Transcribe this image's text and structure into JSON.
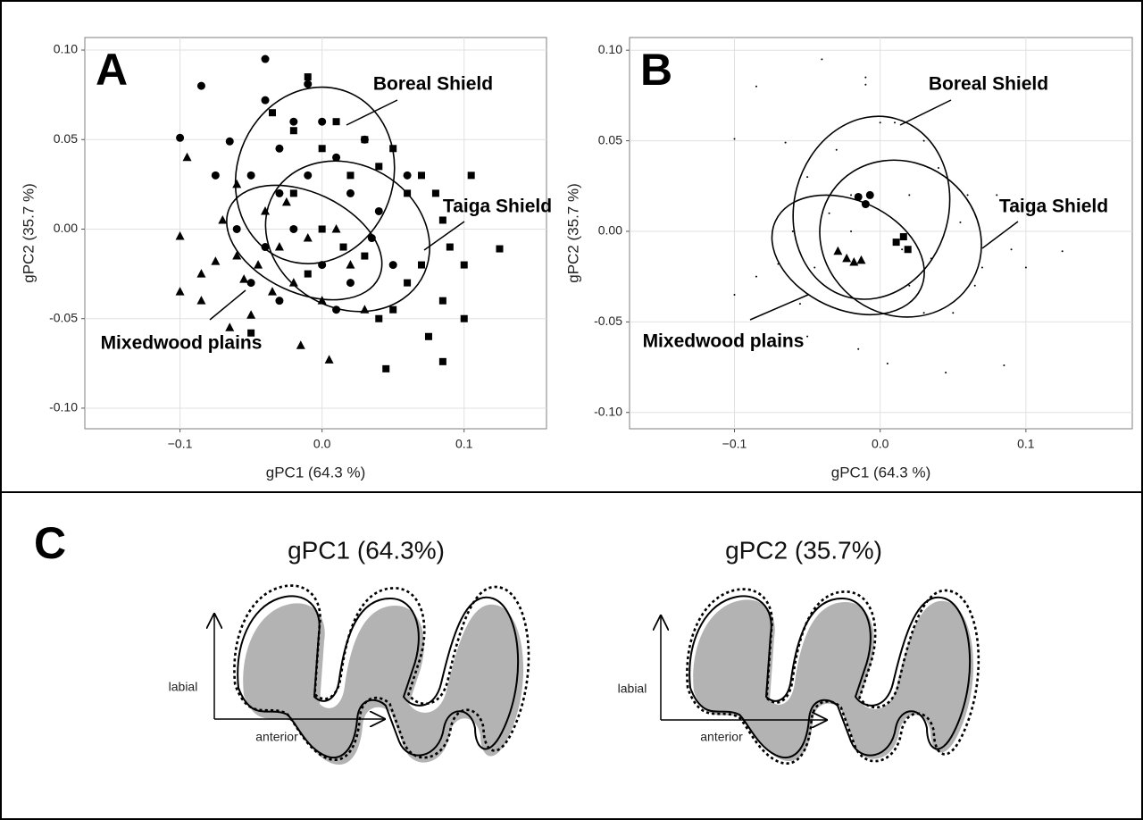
{
  "chart_data": [
    {
      "type": "scatter",
      "panel_label": "A",
      "xlabel": "gPC1 (64.3 %)",
      "ylabel": "gPC2 (35.7 %)",
      "xlim": [
        -0.167,
        0.158
      ],
      "ylim": [
        -0.1115,
        0.107
      ],
      "grid": true,
      "xticks": [
        {
          "value": -0.1,
          "label": "−0.1"
        },
        {
          "value": 0,
          "label": "0.0"
        },
        {
          "value": 0.1,
          "label": "0.1"
        }
      ],
      "yticks": [
        {
          "value": -0.1,
          "label": "-0.10"
        },
        {
          "value": -0.05,
          "label": "-0.05"
        },
        {
          "value": 0,
          "label": "0.00"
        },
        {
          "value": 0.05,
          "label": "0.05"
        },
        {
          "value": 0.1,
          "label": "0.10"
        }
      ],
      "series": [
        {
          "marker": "circle",
          "color": "#000000",
          "x": [
            -0.085,
            -0.04,
            -0.01,
            -0.1,
            -0.065,
            -0.04,
            -0.03,
            -0.02,
            0.0,
            0.01,
            0.03,
            -0.05,
            -0.03,
            -0.01,
            0.02,
            0.04,
            -0.06,
            -0.04,
            -0.02,
            0.0,
            0.02,
            -0.05,
            -0.03,
            0.01,
            0.06,
            0.05,
            -0.075,
            0.035
          ],
          "values": [
            0.08,
            0.095,
            0.081,
            0.051,
            0.049,
            0.072,
            0.045,
            0.06,
            0.06,
            0.04,
            0.05,
            0.03,
            0.02,
            0.03,
            0.02,
            0.01,
            0.0,
            -0.01,
            0.0,
            -0.02,
            -0.03,
            -0.03,
            -0.04,
            -0.045,
            0.03,
            -0.02,
            0.03,
            -0.005
          ]
        },
        {
          "marker": "triangle",
          "color": "#000000",
          "x": [
            -0.1,
            -0.1,
            -0.085,
            -0.085,
            -0.075,
            -0.07,
            -0.06,
            -0.06,
            -0.055,
            -0.05,
            -0.045,
            -0.04,
            -0.035,
            -0.03,
            -0.025,
            -0.02,
            -0.015,
            -0.01,
            0.0,
            0.005,
            0.01,
            0.02,
            0.03,
            -0.095,
            -0.065
          ],
          "values": [
            -0.035,
            -0.004,
            -0.025,
            -0.04,
            -0.018,
            0.005,
            -0.015,
            0.025,
            -0.028,
            -0.048,
            -0.02,
            0.01,
            -0.035,
            -0.01,
            0.015,
            -0.03,
            -0.065,
            -0.005,
            -0.04,
            -0.073,
            0.0,
            -0.02,
            -0.045,
            0.04,
            -0.055
          ]
        },
        {
          "marker": "square",
          "color": "#000000",
          "x": [
            -0.035,
            -0.02,
            -0.01,
            0.0,
            0.01,
            0.02,
            0.03,
            0.04,
            0.05,
            0.06,
            0.07,
            0.08,
            0.085,
            0.09,
            0.1,
            0.105,
            0.125,
            0.07,
            0.06,
            0.05,
            0.04,
            0.085,
            0.1,
            0.075,
            0.085,
            0.045,
            -0.05,
            0.015,
            0.0,
            -0.02,
            0.03,
            -0.01
          ],
          "values": [
            0.065,
            0.055,
            0.085,
            0.045,
            0.06,
            0.03,
            0.05,
            0.035,
            0.045,
            0.02,
            0.03,
            0.02,
            0.005,
            -0.01,
            -0.02,
            0.03,
            -0.011,
            -0.02,
            -0.03,
            -0.045,
            -0.05,
            -0.04,
            -0.05,
            -0.06,
            -0.074,
            -0.078,
            -0.058,
            -0.01,
            0.0,
            0.02,
            -0.015,
            -0.025
          ]
        }
      ],
      "ellipses": [
        {
          "name": "Boreal Shield",
          "cx": -0.005,
          "cy": 0.03,
          "rx": 0.055,
          "ry": 0.05,
          "angle": 20
        },
        {
          "name": "Taiga Shield",
          "cx": 0.018,
          "cy": -0.004,
          "rx": 0.06,
          "ry": 0.04,
          "angle": 30
        },
        {
          "name": "Mixedwood plains",
          "cx": -0.0125,
          "cy": -0.0075,
          "rx": 0.058,
          "ry": 0.028,
          "angle": 25
        }
      ]
    },
    {
      "type": "scatter",
      "panel_label": "B",
      "xlabel": "gPC1 (64.3 %)",
      "ylabel": "gPC2 (35.7 %)",
      "xlim": [
        -0.172,
        0.173
      ],
      "ylim": [
        -0.109,
        0.107
      ],
      "grid": true,
      "xticks": [
        {
          "value": -0.1,
          "label": "−0.1"
        },
        {
          "value": 0,
          "label": "0.0"
        },
        {
          "value": 0.1,
          "label": "0.1"
        }
      ],
      "yticks": [
        {
          "value": -0.1,
          "label": "-0.10"
        },
        {
          "value": -0.05,
          "label": "-0.05"
        },
        {
          "value": 0,
          "label": "0.00"
        },
        {
          "value": 0.05,
          "label": "0.05"
        },
        {
          "value": 0.1,
          "label": "0.10"
        }
      ],
      "series": [
        {
          "marker": "dot",
          "color": "#000000",
          "x": [
            -0.085,
            -0.04,
            -0.01,
            -0.1,
            -0.065,
            -0.03,
            0.0,
            0.03,
            -0.05,
            0.02,
            -0.06,
            -0.02,
            0.02,
            -0.1,
            -0.085,
            -0.07,
            -0.045,
            -0.015,
            0.005,
            0.03,
            -0.01,
            0.01,
            0.04,
            0.06,
            0.08,
            0.09,
            0.1,
            0.125,
            0.07,
            0.05,
            0.085,
            0.045,
            -0.05,
            0.015,
            -0.02,
            0.035,
            -0.035,
            0.055,
            -0.055,
            0.065
          ],
          "values": [
            0.08,
            0.095,
            0.081,
            0.051,
            0.049,
            0.045,
            0.06,
            0.05,
            0.03,
            0.02,
            0.0,
            0.0,
            -0.03,
            -0.035,
            -0.025,
            -0.018,
            -0.02,
            -0.065,
            -0.073,
            -0.045,
            0.085,
            0.06,
            0.035,
            0.02,
            0.02,
            -0.01,
            -0.02,
            -0.011,
            -0.02,
            -0.045,
            -0.074,
            -0.078,
            -0.058,
            -0.01,
            0.02,
            -0.015,
            0.01,
            0.005,
            -0.04,
            -0.03
          ]
        },
        {
          "marker": "circle",
          "color": "#000000",
          "x": [
            -0.015,
            -0.007,
            -0.01
          ],
          "values": [
            0.019,
            0.02,
            0.015
          ]
        },
        {
          "marker": "square",
          "color": "#000000",
          "x": [
            0.011,
            0.016,
            0.019
          ],
          "values": [
            -0.006,
            -0.003,
            -0.01
          ]
        },
        {
          "marker": "triangle",
          "color": "#000000",
          "x": [
            -0.029,
            -0.023,
            -0.018,
            -0.013
          ],
          "values": [
            -0.011,
            -0.015,
            -0.017,
            -0.016
          ]
        }
      ],
      "ellipses": [
        {
          "name": "Boreal Shield",
          "cx": -0.006,
          "cy": 0.013,
          "rx": 0.053,
          "ry": 0.051,
          "angle": 15
        },
        {
          "name": "Taiga Shield",
          "cx": 0.014,
          "cy": -0.004,
          "rx": 0.057,
          "ry": 0.042,
          "angle": 35
        },
        {
          "name": "Mixedwood plains",
          "cx": -0.022,
          "cy": -0.013,
          "rx": 0.055,
          "ry": 0.03,
          "angle": 25
        }
      ]
    }
  ],
  "panel_c": {
    "label": "C",
    "shapes": [
      {
        "title": "gPC1 (64.3%)",
        "y_axis": "labial",
        "x_axis": "anterior"
      },
      {
        "title": "gPC2 (35.7%)",
        "y_axis": "labial",
        "x_axis": "anterior"
      }
    ]
  }
}
